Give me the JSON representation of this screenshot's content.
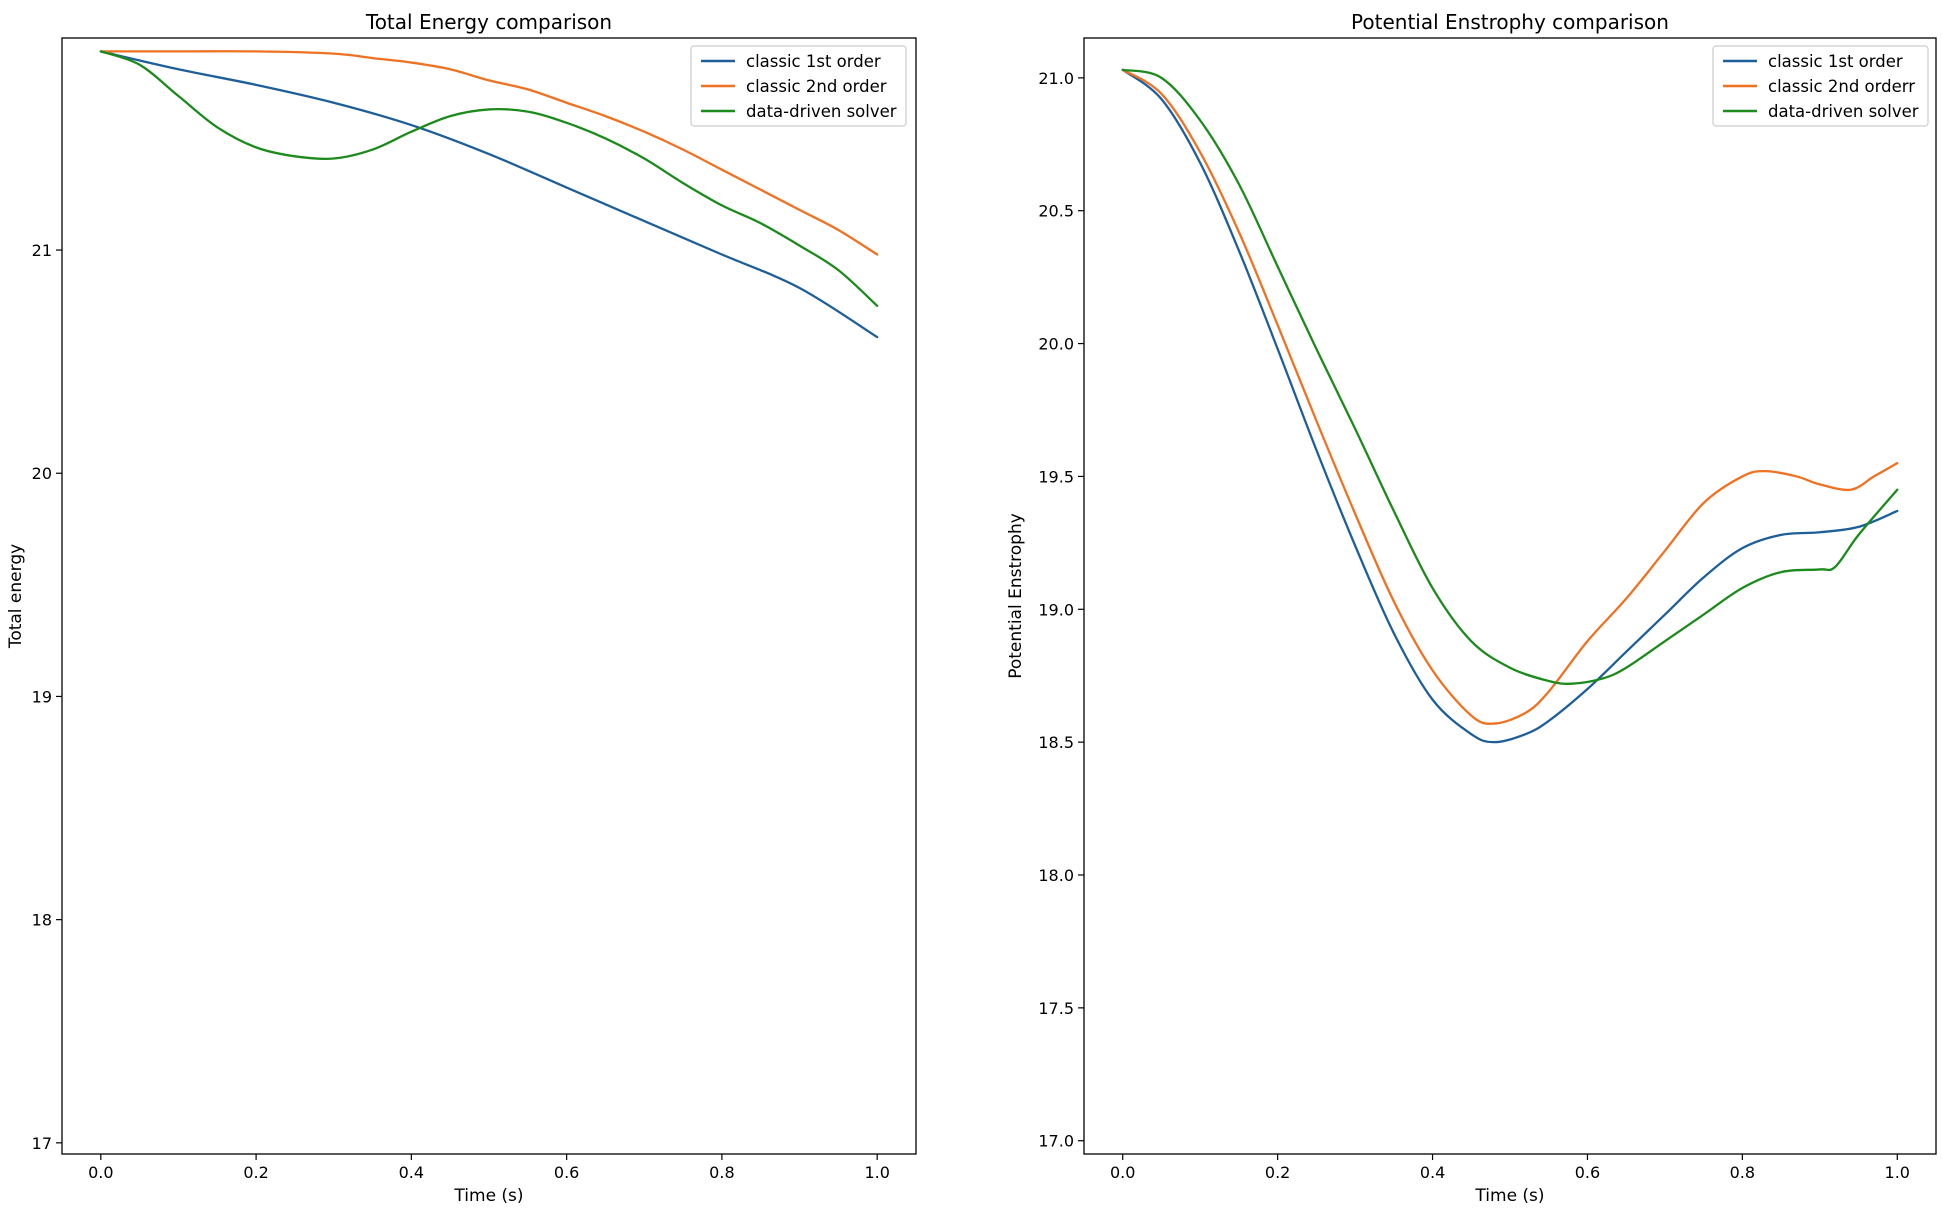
{
  "colors": {
    "series1": "#1f5f99",
    "series2": "#ef7122",
    "series3": "#1c8a1c",
    "axes": "#000000",
    "legend_border": "#cccccc"
  },
  "chart_data": [
    {
      "type": "line",
      "title": "Total Energy comparison",
      "xlabel": "Time (s)",
      "ylabel": "Total energy",
      "xlim": [
        -0.05,
        1.05
      ],
      "ylim": [
        16.95,
        21.95
      ],
      "xticks": [
        0.0,
        0.2,
        0.4,
        0.6,
        0.8,
        1.0
      ],
      "xtick_labels": [
        "0.0",
        "0.2",
        "0.4",
        "0.6",
        "0.8",
        "1.0"
      ],
      "yticks": [
        17,
        18,
        19,
        20,
        21
      ],
      "ytick_labels": [
        "17",
        "18",
        "19",
        "20",
        "21"
      ],
      "legend_position": "upper-right",
      "series": [
        {
          "name": "classic 1st order",
          "color_key": "series1",
          "x": [
            0.0,
            0.1,
            0.2,
            0.3,
            0.4,
            0.5,
            0.6,
            0.7,
            0.8,
            0.9,
            1.0
          ],
          "y": [
            21.89,
            21.81,
            21.74,
            21.66,
            21.56,
            21.43,
            21.28,
            21.13,
            20.98,
            20.83,
            20.61
          ]
        },
        {
          "name": "classic 2nd order",
          "color_key": "series2",
          "x": [
            0.0,
            0.1,
            0.2,
            0.3,
            0.35,
            0.4,
            0.45,
            0.5,
            0.55,
            0.6,
            0.65,
            0.7,
            0.75,
            0.8,
            0.85,
            0.9,
            0.95,
            1.0
          ],
          "y": [
            21.89,
            21.89,
            21.89,
            21.88,
            21.86,
            21.84,
            21.81,
            21.76,
            21.72,
            21.66,
            21.6,
            21.53,
            21.45,
            21.36,
            21.27,
            21.18,
            21.09,
            20.98
          ]
        },
        {
          "name": "data-driven solver",
          "color_key": "series3",
          "x": [
            0.0,
            0.05,
            0.1,
            0.15,
            0.2,
            0.25,
            0.3,
            0.35,
            0.4,
            0.45,
            0.5,
            0.55,
            0.6,
            0.65,
            0.7,
            0.75,
            0.8,
            0.85,
            0.9,
            0.95,
            1.0
          ],
          "y": [
            21.89,
            21.83,
            21.69,
            21.55,
            21.46,
            21.42,
            21.41,
            21.45,
            21.53,
            21.6,
            21.63,
            21.62,
            21.57,
            21.5,
            21.41,
            21.3,
            21.2,
            21.12,
            21.02,
            20.91,
            20.75
          ]
        }
      ]
    },
    {
      "type": "line",
      "title": "Potential Enstrophy comparison",
      "xlabel": "Time (s)",
      "ylabel": "Potential Enstrophy",
      "xlim": [
        -0.05,
        1.05
      ],
      "ylim": [
        16.95,
        21.15
      ],
      "xticks": [
        0.0,
        0.2,
        0.4,
        0.6,
        0.8,
        1.0
      ],
      "xtick_labels": [
        "0.0",
        "0.2",
        "0.4",
        "0.6",
        "0.8",
        "1.0"
      ],
      "yticks": [
        17.0,
        17.5,
        18.0,
        18.5,
        19.0,
        19.5,
        20.0,
        20.5,
        21.0
      ],
      "ytick_labels": [
        "17.0",
        "17.5",
        "18.0",
        "18.5",
        "19.0",
        "19.5",
        "20.0",
        "20.5",
        "21.0"
      ],
      "legend_position": "upper-right",
      "series": [
        {
          "name": "classic 1st order",
          "color_key": "series1",
          "x": [
            0.0,
            0.05,
            0.1,
            0.15,
            0.2,
            0.25,
            0.3,
            0.35,
            0.4,
            0.45,
            0.48,
            0.52,
            0.55,
            0.6,
            0.65,
            0.7,
            0.75,
            0.8,
            0.85,
            0.9,
            0.95,
            1.0
          ],
          "y": [
            21.03,
            20.92,
            20.68,
            20.35,
            19.98,
            19.6,
            19.24,
            18.91,
            18.66,
            18.53,
            18.5,
            18.53,
            18.58,
            18.7,
            18.84,
            18.98,
            19.12,
            19.23,
            19.28,
            19.29,
            19.31,
            19.37
          ]
        },
        {
          "name": "classic 2nd orderr",
          "color_key": "series2",
          "x": [
            0.0,
            0.05,
            0.1,
            0.15,
            0.2,
            0.25,
            0.3,
            0.35,
            0.4,
            0.45,
            0.48,
            0.52,
            0.55,
            0.6,
            0.65,
            0.7,
            0.75,
            0.8,
            0.83,
            0.87,
            0.9,
            0.94,
            0.97,
            1.0
          ],
          "y": [
            21.03,
            20.94,
            20.72,
            20.42,
            20.07,
            19.71,
            19.36,
            19.03,
            18.77,
            18.6,
            18.57,
            18.61,
            18.69,
            18.88,
            19.04,
            19.22,
            19.4,
            19.5,
            19.52,
            19.5,
            19.47,
            19.45,
            19.5,
            19.55
          ]
        },
        {
          "name": "data-driven solver",
          "color_key": "series3",
          "x": [
            0.0,
            0.05,
            0.1,
            0.15,
            0.2,
            0.25,
            0.3,
            0.35,
            0.4,
            0.45,
            0.5,
            0.55,
            0.58,
            0.62,
            0.65,
            0.7,
            0.75,
            0.8,
            0.85,
            0.9,
            0.92,
            0.95,
            1.0
          ],
          "y": [
            21.03,
            21.0,
            20.84,
            20.6,
            20.29,
            19.98,
            19.68,
            19.37,
            19.08,
            18.88,
            18.78,
            18.73,
            18.72,
            18.74,
            18.78,
            18.88,
            18.98,
            19.08,
            19.14,
            19.15,
            19.16,
            19.28,
            19.45
          ]
        }
      ]
    }
  ]
}
